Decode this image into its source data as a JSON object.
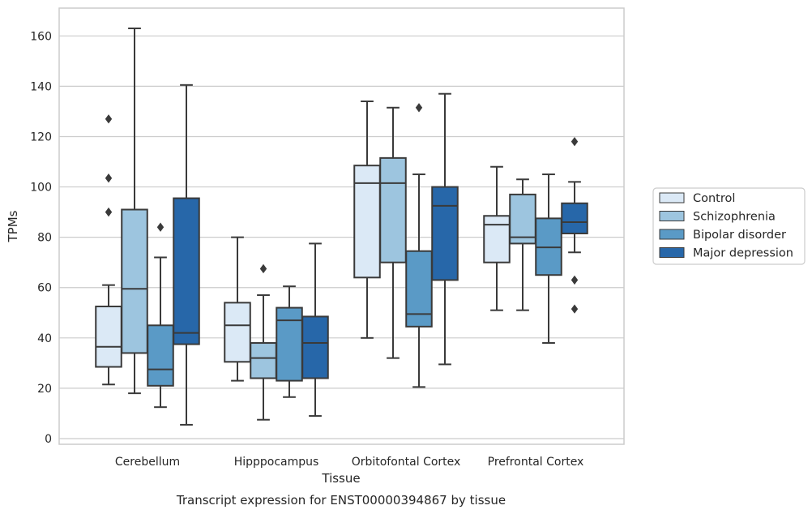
{
  "chart_data": {
    "type": "boxplot",
    "title": "Transcript expression for ENST00000394867 by tissue",
    "xlabel": "Tissue",
    "ylabel": "TPMs",
    "ylim": [
      -2,
      171
    ],
    "yticks": [
      0,
      20,
      40,
      60,
      80,
      100,
      120,
      140,
      160
    ],
    "grid": "horizontal",
    "legend_position": "right",
    "categories": [
      "Cerebellum",
      "Hipppocampus",
      "Orbitofontal Cortex",
      "Prefrontal Cortex"
    ],
    "series": [
      {
        "name": "Control",
        "color": "#dbe9f6",
        "boxes": [
          {
            "whislo": 21.5,
            "q1": 28.5,
            "med": 36.5,
            "q3": 52.5,
            "whishi": 61,
            "fliers": [
              127,
              103.5,
              90
            ]
          },
          {
            "whislo": 23,
            "q1": 30.5,
            "med": 45,
            "q3": 54,
            "whishi": 80,
            "fliers": []
          },
          {
            "whislo": 40,
            "q1": 64,
            "med": 101.5,
            "q3": 108.5,
            "whishi": 134,
            "fliers": []
          },
          {
            "whislo": 51,
            "q1": 70,
            "med": 85,
            "q3": 88.5,
            "whishi": 108,
            "fliers": []
          }
        ]
      },
      {
        "name": "Schizophrenia",
        "color": "#9dc5df",
        "boxes": [
          {
            "whislo": 18,
            "q1": 34,
            "med": 59.5,
            "q3": 91,
            "whishi": 163,
            "fliers": []
          },
          {
            "whislo": 7.5,
            "q1": 24,
            "med": 32,
            "q3": 38,
            "whishi": 57,
            "fliers": [
              67.5
            ]
          },
          {
            "whislo": 32,
            "q1": 70,
            "med": 101.5,
            "q3": 111.5,
            "whishi": 131.5,
            "fliers": []
          },
          {
            "whislo": 51,
            "q1": 77.5,
            "med": 80,
            "q3": 97,
            "whishi": 103,
            "fliers": []
          }
        ]
      },
      {
        "name": "Bipolar disorder",
        "color": "#5a9ac6",
        "boxes": [
          {
            "whislo": 12.5,
            "q1": 21,
            "med": 27.5,
            "q3": 45,
            "whishi": 72,
            "fliers": [
              84
            ]
          },
          {
            "whislo": 16.5,
            "q1": 23,
            "med": 47,
            "q3": 52,
            "whishi": 60.5,
            "fliers": []
          },
          {
            "whislo": 20.5,
            "q1": 44.5,
            "med": 49.5,
            "q3": 74.5,
            "whishi": 105,
            "fliers": [
              131.5
            ]
          },
          {
            "whislo": 38,
            "q1": 65,
            "med": 76,
            "q3": 87.5,
            "whishi": 105,
            "fliers": []
          }
        ]
      },
      {
        "name": "Major depression",
        "color": "#2767a9",
        "boxes": [
          {
            "whislo": 5.5,
            "q1": 37.5,
            "med": 42,
            "q3": 95.5,
            "whishi": 140.5,
            "fliers": []
          },
          {
            "whislo": 9,
            "q1": 24,
            "med": 38,
            "q3": 48.5,
            "whishi": 77.5,
            "fliers": []
          },
          {
            "whislo": 29.5,
            "q1": 63,
            "med": 92.5,
            "q3": 100,
            "whishi": 137,
            "fliers": []
          },
          {
            "whislo": 74,
            "q1": 81.5,
            "med": 86,
            "q3": 93.5,
            "whishi": 102,
            "fliers": [
              118,
              63,
              51.5
            ]
          }
        ]
      }
    ]
  }
}
